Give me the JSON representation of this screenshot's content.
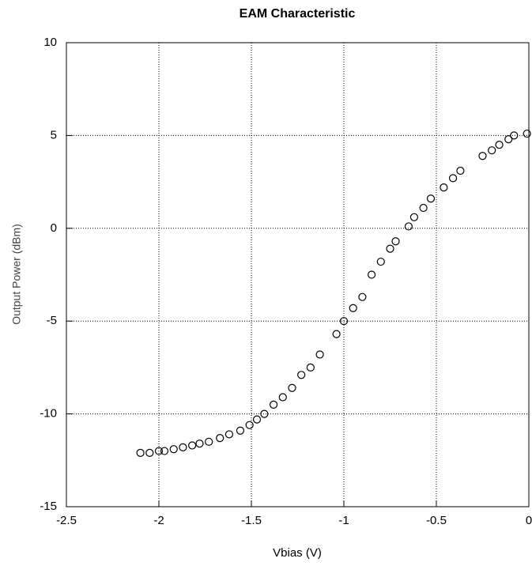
{
  "chart_data": {
    "type": "scatter",
    "title": "EAM Characteristic",
    "x_label": "Vbias (V)",
    "y_label": "Output Power (dBm)",
    "x": [
      -2.1,
      -2.05,
      -2.0,
      -1.97,
      -1.92,
      -1.87,
      -1.82,
      -1.78,
      -1.73,
      -1.67,
      -1.62,
      -1.56,
      -1.51,
      -1.47,
      -1.43,
      -1.38,
      -1.33,
      -1.28,
      -1.23,
      -1.18,
      -1.13,
      -1.04,
      -1.0,
      -0.95,
      -0.9,
      -0.85,
      -0.8,
      -0.75,
      -0.72,
      -0.65,
      -0.62,
      -0.57,
      -0.53,
      -0.46,
      -0.41,
      -0.37,
      -0.25,
      -0.2,
      -0.16,
      -0.11,
      -0.08,
      -0.01
    ],
    "series": [
      {
        "color": "#000000",
        "values": [
          -12.1,
          -12.1,
          -12.0,
          -12.0,
          -11.9,
          -11.8,
          -11.7,
          -11.6,
          -11.5,
          -11.3,
          -11.1,
          -10.9,
          -10.6,
          -10.3,
          -10.0,
          -9.5,
          -9.1,
          -8.6,
          -7.9,
          -7.5,
          -6.8,
          -5.7,
          -5.0,
          -4.3,
          -3.7,
          -2.5,
          -1.8,
          -1.1,
          -0.7,
          0.1,
          0.6,
          1.1,
          1.6,
          2.2,
          2.7,
          3.1,
          3.9,
          4.2,
          4.5,
          4.8,
          5.0,
          5.1
        ]
      }
    ],
    "xlim": [
      -2.5,
      0
    ],
    "xticks": [
      -2.5,
      -2,
      -1.5,
      -1,
      -0.5,
      0
    ],
    "ylim": [
      -15,
      10
    ],
    "yticks": [
      -15,
      -10,
      -5,
      0,
      5,
      10
    ],
    "grid": true
  }
}
